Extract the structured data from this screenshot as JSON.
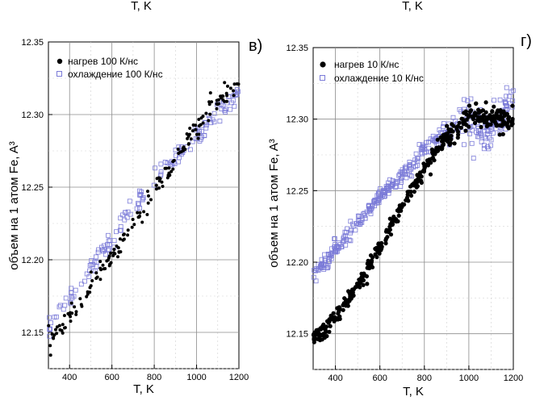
{
  "top_fragment": {
    "left_xlabel": "T, K",
    "right_xlabel": "T, K"
  },
  "chart_data": [
    {
      "type": "scatter",
      "panel_mark": "в)",
      "xlabel": "T, K",
      "ylabel": "объем на 1 атом Fe, A³",
      "xlim": [
        300,
        1200
      ],
      "ylim": [
        12.125,
        12.35
      ],
      "xticks": [
        400,
        600,
        800,
        1000,
        1200
      ],
      "yticks": [
        12.15,
        12.2,
        12.25,
        12.3,
        12.35
      ],
      "grid": true,
      "legend_position": "top-left",
      "series": [
        {
          "name": "нагрев 100 К/нс",
          "marker": "filled-circle",
          "color": "#000000",
          "points": [
            [
              300,
              12.145
            ],
            [
              400,
              12.16
            ],
            [
              500,
              12.182
            ],
            [
              600,
              12.202
            ],
            [
              700,
              12.224
            ],
            [
              800,
              12.248
            ],
            [
              900,
              12.268
            ],
            [
              1000,
              12.29
            ],
            [
              1050,
              12.303
            ],
            [
              1100,
              12.31
            ],
            [
              1150,
              12.313
            ],
            [
              1200,
              12.322
            ]
          ]
        },
        {
          "name": "охлаждение 100 К/нс",
          "marker": "open-square",
          "color": "#7b7bd8",
          "points": [
            [
              300,
              12.152
            ],
            [
              400,
              12.172
            ],
            [
              500,
              12.193
            ],
            [
              600,
              12.215
            ],
            [
              700,
              12.236
            ],
            [
              800,
              12.256
            ],
            [
              900,
              12.272
            ],
            [
              1000,
              12.285
            ],
            [
              1050,
              12.293
            ],
            [
              1100,
              12.302
            ],
            [
              1150,
              12.308
            ],
            [
              1200,
              12.318
            ]
          ]
        }
      ]
    },
    {
      "type": "scatter",
      "panel_mark": "г)",
      "xlabel": "T, K",
      "ylabel": "объем на 1 атом Fe, A³",
      "xlim": [
        300,
        1200
      ],
      "ylim": [
        12.125,
        12.35
      ],
      "xticks": [
        400,
        600,
        800,
        1000,
        1200
      ],
      "yticks": [
        12.15,
        12.2,
        12.25,
        12.3,
        12.35
      ],
      "grid": true,
      "legend_position": "top-left",
      "series": [
        {
          "name": "нагрев 10 К/нс",
          "marker": "filled-circle",
          "color": "#000000",
          "points": [
            [
              300,
              12.146
            ],
            [
              400,
              12.162
            ],
            [
              500,
              12.183
            ],
            [
              600,
              12.21
            ],
            [
              700,
              12.24
            ],
            [
              800,
              12.265
            ],
            [
              900,
              12.288
            ],
            [
              950,
              12.293
            ],
            [
              1000,
              12.302
            ],
            [
              1030,
              12.305
            ],
            [
              1060,
              12.3
            ]
          ]
        },
        {
          "name": "охлаждение 10 К/нс",
          "marker": "open-square",
          "color": "#7b7bd8",
          "points": [
            [
              300,
              12.19
            ],
            [
              400,
              12.208
            ],
            [
              500,
              12.228
            ],
            [
              600,
              12.245
            ],
            [
              700,
              12.26
            ],
            [
              800,
              12.278
            ],
            [
              900,
              12.293
            ],
            [
              950,
              12.297
            ],
            [
              1000,
              12.3
            ],
            [
              1050,
              12.29
            ],
            [
              1100,
              12.29
            ],
            [
              1150,
              12.303
            ],
            [
              1200,
              12.315
            ]
          ]
        }
      ]
    }
  ]
}
